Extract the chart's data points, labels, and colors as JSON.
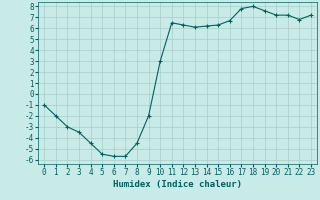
{
  "x": [
    0,
    1,
    2,
    3,
    4,
    5,
    6,
    7,
    8,
    9,
    10,
    11,
    12,
    13,
    14,
    15,
    16,
    17,
    18,
    19,
    20,
    21,
    22,
    23
  ],
  "y": [
    -1,
    -2,
    -3,
    -3.5,
    -4.5,
    -5.5,
    -5.7,
    -5.7,
    -4.5,
    -2,
    3,
    6.5,
    6.3,
    6.1,
    6.2,
    6.3,
    6.7,
    7.8,
    8.0,
    7.6,
    7.2,
    7.2,
    6.8,
    7.2
  ],
  "line_color": "#006060",
  "marker": "+",
  "marker_size": 3,
  "bg_color": "#c8ebe8",
  "grid_color": "#aaccc8",
  "xlabel": "Humidex (Indice chaleur)",
  "xlabel_fontsize": 6.5,
  "tick_fontsize": 5.5,
  "ylim": [
    -6,
    8
  ],
  "xlim": [
    -0.5,
    23.5
  ],
  "yticks": [
    -6,
    -5,
    -4,
    -3,
    -2,
    -1,
    0,
    1,
    2,
    3,
    4,
    5,
    6,
    7,
    8
  ],
  "xticks": [
    0,
    1,
    2,
    3,
    4,
    5,
    6,
    7,
    8,
    9,
    10,
    11,
    12,
    13,
    14,
    15,
    16,
    17,
    18,
    19,
    20,
    21,
    22,
    23
  ]
}
